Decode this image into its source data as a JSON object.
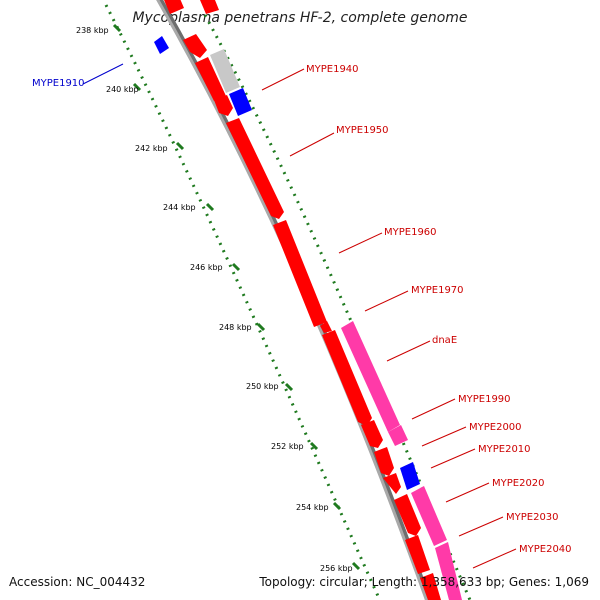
{
  "title": "Mycoplasma penetrans HF-2, complete genome",
  "accession": "Accession: NC_004432",
  "summary": "Topology: circular; Length: 1,358,633 bp; Genes: 1,069",
  "colors": {
    "backbone": "#8c8c8c",
    "tick": "#1f7a1f",
    "label_forward": "#cc0000",
    "label_reverse": "#0000cc",
    "gene_red": "#ff0000",
    "gene_pink": "#ff3aa8",
    "gene_blue": "#0000ff",
    "gene_gray": "#c8c8c8"
  },
  "tick_labels": [
    "238 kbp",
    "240 kbp",
    "242 kbp",
    "244 kbp",
    "246 kbp",
    "248 kbp",
    "250 kbp",
    "252 kbp",
    "254 kbp",
    "256 kbp"
  ],
  "gene_labels": [
    {
      "name": "MYPE1910",
      "strand": "reverse"
    },
    {
      "name": "MYPE1940",
      "strand": "forward"
    },
    {
      "name": "MYPE1950",
      "strand": "forward"
    },
    {
      "name": "MYPE1960",
      "strand": "forward"
    },
    {
      "name": "MYPE1970",
      "strand": "forward"
    },
    {
      "name": "dnaE",
      "strand": "forward"
    },
    {
      "name": "MYPE1990",
      "strand": "forward"
    },
    {
      "name": "MYPE2000",
      "strand": "forward"
    },
    {
      "name": "MYPE2010",
      "strand": "forward"
    },
    {
      "name": "MYPE2020",
      "strand": "forward"
    },
    {
      "name": "MYPE2030",
      "strand": "forward"
    },
    {
      "name": "MYPE2040",
      "strand": "forward"
    }
  ]
}
